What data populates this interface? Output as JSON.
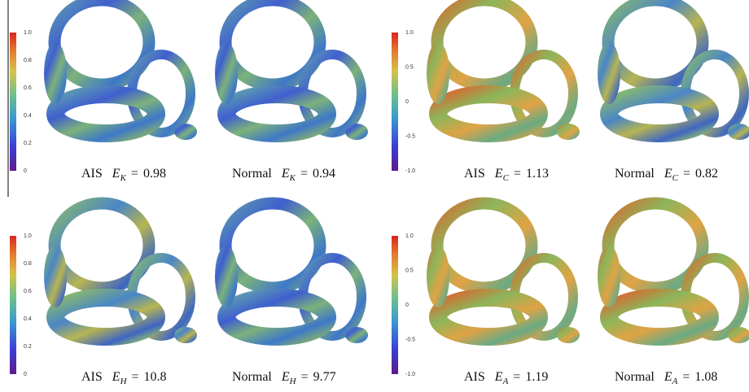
{
  "panels": [
    {
      "colorbar_ticks": [
        "1.0",
        "0.8",
        "0.6",
        "0.4",
        "0.2",
        "0"
      ],
      "captions": [
        {
          "group": "AIS",
          "var": "E",
          "sub": "K",
          "rel": "=",
          "value": 0.98
        },
        {
          "group": "Normal",
          "var": "E",
          "sub": "K",
          "rel": "=",
          "value": 0.94
        }
      ]
    },
    {
      "colorbar_ticks": [
        "1.0",
        "0.5",
        "0",
        "-0.5",
        "-1.0"
      ],
      "captions": [
        {
          "group": "AIS",
          "var": "E",
          "sub": "C",
          "rel": "=",
          "value": 1.13
        },
        {
          "group": "Normal",
          "var": "E",
          "sub": "C",
          "rel": "=",
          "value": 0.82
        }
      ]
    },
    {
      "colorbar_ticks": [
        "1.0",
        "0.8",
        "0.6",
        "0.4",
        "0.2",
        "0"
      ],
      "captions": [
        {
          "group": "AIS",
          "var": "E",
          "sub": "H",
          "rel": "=",
          "value": 10.8
        },
        {
          "group": "Normal",
          "var": "E",
          "sub": "H",
          "rel": "=",
          "value": 9.77
        }
      ]
    },
    {
      "colorbar_ticks": [
        "1.0",
        "0.5",
        "0",
        "-0.5",
        "-1.0"
      ],
      "captions": [
        {
          "group": "AIS",
          "var": "E",
          "sub": "A",
          "rel": "=",
          "value": 1.19
        },
        {
          "group": "Normal",
          "var": "E",
          "sub": "A",
          "rel": "=",
          "value": 1.08
        }
      ]
    }
  ]
}
